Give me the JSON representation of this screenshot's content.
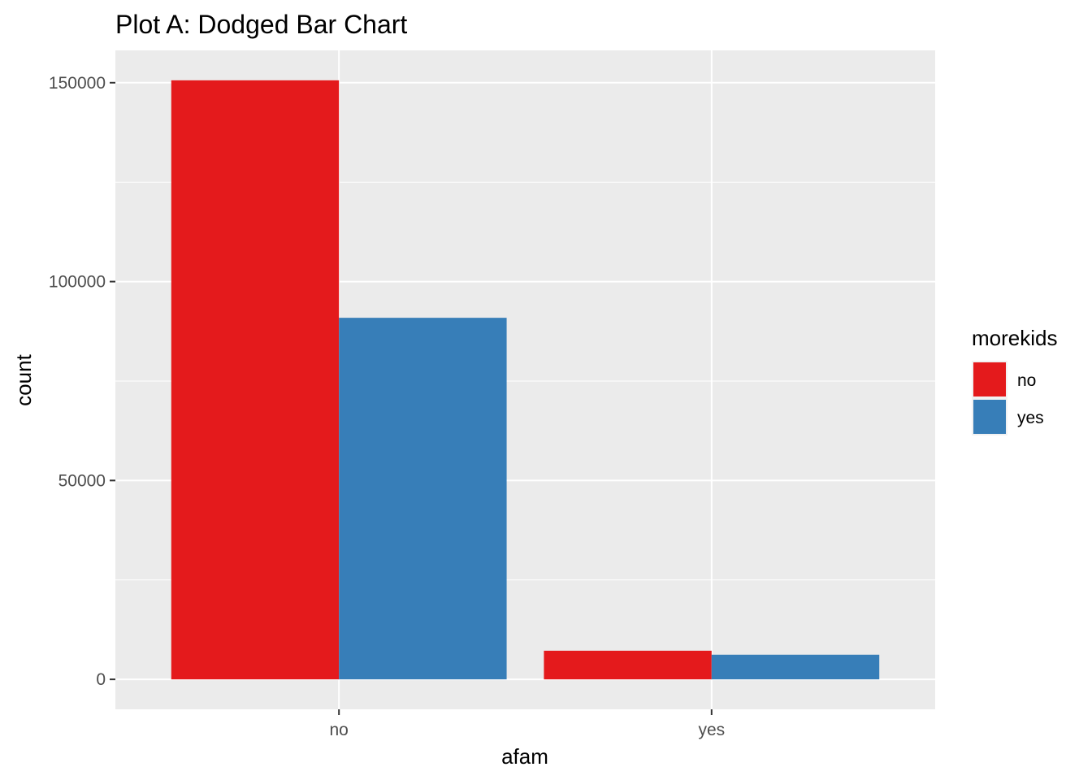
{
  "chart_data": {
    "type": "bar",
    "title": "Plot A: Dodged Bar Chart",
    "xlabel": "afam",
    "ylabel": "count",
    "categories": [
      "no",
      "yes"
    ],
    "series": [
      {
        "name": "no",
        "color": "#E41A1C",
        "values": [
          150600,
          7200
        ]
      },
      {
        "name": "yes",
        "color": "#377EB8",
        "values": [
          90900,
          6200
        ]
      }
    ],
    "ylim": [
      -7530,
      158130
    ],
    "yticks": [
      0,
      50000,
      100000,
      150000
    ],
    "yticks_minor": [
      25000,
      75000,
      125000
    ],
    "ytick_labels": [
      "0",
      "50000",
      "100000",
      "150000"
    ],
    "grid": true,
    "legend": {
      "title": "morekids",
      "position": "right"
    },
    "panel_background": "#EBEBEB",
    "grid_color": "#FFFFFF"
  }
}
